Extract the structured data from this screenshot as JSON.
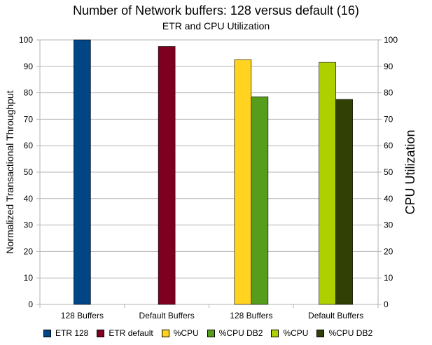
{
  "chart_data": {
    "type": "bar",
    "title": "Number of Network buffers: 128 versus default (16)",
    "subtitle": "ETR and CPU Utilization",
    "ylabel": "Normalized Transactional Throughput",
    "y2label": "CPU Utilization",
    "ylim": [
      0,
      100
    ],
    "yticks": [
      0,
      10,
      20,
      30,
      40,
      50,
      60,
      70,
      80,
      90,
      100
    ],
    "grid": true,
    "legend_position": "bottom",
    "categories": [
      "128 Buffers",
      "Default Buffers",
      "128 Buffers",
      "Default Buffers"
    ],
    "series": [
      {
        "name": "ETR 128",
        "color": "#004586",
        "values": [
          100,
          null,
          null,
          null
        ]
      },
      {
        "name": "ETR default",
        "color": "#7e0021",
        "values": [
          null,
          97.5,
          null,
          null
        ]
      },
      {
        "name": "%CPU",
        "color": "#ffd320",
        "values": [
          null,
          null,
          92.5,
          null
        ]
      },
      {
        "name": "%CPU DB2",
        "color": "#579d1c",
        "values": [
          null,
          null,
          78.5,
          null
        ]
      },
      {
        "name": "%CPU",
        "color": "#aecf00",
        "values": [
          null,
          null,
          null,
          91.5
        ]
      },
      {
        "name": "%CPU DB2",
        "color": "#314004",
        "values": [
          null,
          null,
          null,
          77.5
        ]
      }
    ]
  }
}
